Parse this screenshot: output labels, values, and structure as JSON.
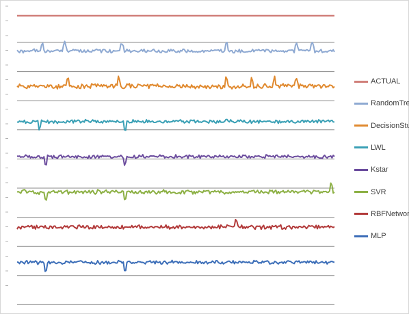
{
  "chart_data": {
    "type": "line",
    "title": "",
    "xlabel": "",
    "ylabel": "",
    "grid": true,
    "legend_position": "right",
    "series": [
      {
        "name": "ACTUAL",
        "color": "#D07F7A",
        "noise": 0.0,
        "spikes": []
      },
      {
        "name": "RandomTree",
        "color": "#8EA9D2",
        "noise": 2.2,
        "spikes": [
          [
            0.08,
            1
          ],
          [
            0.15,
            1
          ],
          [
            0.33,
            1
          ],
          [
            0.66,
            1
          ],
          [
            0.88,
            1
          ],
          [
            0.93,
            1
          ]
        ]
      },
      {
        "name": "DecisionStump",
        "color": "#E0892E",
        "noise": 3.0,
        "spikes": [
          [
            0.16,
            1
          ],
          [
            0.32,
            1
          ],
          [
            0.66,
            1
          ],
          [
            0.74,
            1
          ],
          [
            0.81,
            1
          ],
          [
            0.88,
            1
          ]
        ]
      },
      {
        "name": "LWL",
        "color": "#3AA0B5",
        "noise": 2.2,
        "spikes": [
          [
            0.07,
            -1
          ],
          [
            0.34,
            -1
          ]
        ]
      },
      {
        "name": "Kstar",
        "color": "#6C4D9E",
        "noise": 2.2,
        "spikes": [
          [
            0.09,
            -1
          ],
          [
            0.34,
            -1
          ]
        ]
      },
      {
        "name": "SVR",
        "color": "#8CB044",
        "noise": 2.6,
        "spikes": [
          [
            0.09,
            -1
          ],
          [
            0.34,
            -1
          ],
          [
            0.99,
            1
          ]
        ]
      },
      {
        "name": "RBFNetwork",
        "color": "#B23A3A",
        "noise": 2.4,
        "spikes": [
          [
            0.69,
            1
          ]
        ]
      },
      {
        "name": "MLP",
        "color": "#3C6EB8",
        "noise": 2.2,
        "spikes": [
          [
            0.09,
            -1
          ],
          [
            0.34,
            -1
          ]
        ]
      }
    ]
  },
  "colors": {
    "gridline": "#888888",
    "frame": "#d6d6d6",
    "tick": "#b0b0b0"
  }
}
